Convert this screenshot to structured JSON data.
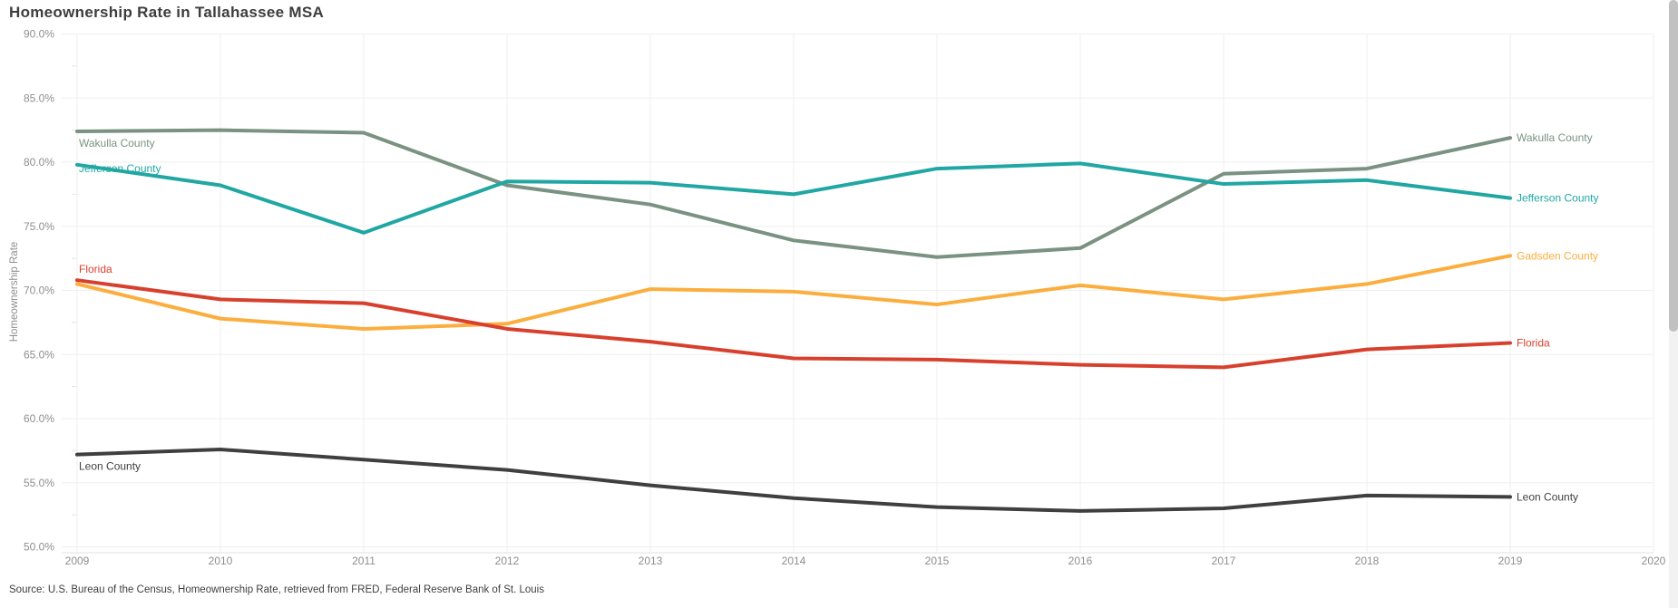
{
  "title": "Homeownership Rate in Tallahassee MSA",
  "source_note": "Source: U.S. Bureau of the Census, Homeownership Rate, retrieved from FRED, Federal Reserve Bank of St. Louis",
  "colors": {
    "background": "#FFFFFF",
    "grid": "#EFEFEF",
    "minor_tick": "#E4E4E4",
    "plot_border": "#E2E2E2",
    "axis_text": "#8E8E8E",
    "title_text": "#3D3D3D",
    "source_text": "#3E3E3E",
    "scrollbar_thumb": "#C1C1C1",
    "scrollbar_track": "#F2F2F2"
  },
  "scrollbar": {
    "thumb_top": 0,
    "thumb_height": 366
  },
  "chart_data": {
    "type": "line",
    "title": "Homeownership Rate in Tallahassee MSA",
    "xlabel": "",
    "ylabel": "Homeownership Rate",
    "x": [
      2009,
      2010,
      2011,
      2012,
      2013,
      2014,
      2015,
      2016,
      2017,
      2018,
      2019
    ],
    "x_tick_labels": [
      "2009",
      "2010",
      "2011",
      "2012",
      "2013",
      "2014",
      "2015",
      "2016",
      "2017",
      "2018",
      "2019",
      "2020"
    ],
    "y_tick_labels": [
      "50.0%",
      "55.0%",
      "60.0%",
      "65.0%",
      "70.0%",
      "75.0%",
      "80.0%",
      "85.0%",
      "90.0%"
    ],
    "xlim": [
      2009,
      2020
    ],
    "ylim": [
      50,
      90
    ],
    "grid": true,
    "legend": "inline-series-labels-left-and-right",
    "series": [
      {
        "name": "Wakulla County",
        "color": "#7A9282",
        "values": [
          82.4,
          82.5,
          82.3,
          78.2,
          76.7,
          73.9,
          72.6,
          73.3,
          79.1,
          79.5,
          81.9
        ],
        "left_label": true,
        "left_label_dy": 13
      },
      {
        "name": "Jefferson County",
        "color": "#21A7A3",
        "values": [
          79.8,
          78.2,
          74.5,
          78.5,
          78.4,
          77.5,
          79.5,
          79.9,
          78.3,
          78.6,
          77.2
        ],
        "left_label": true,
        "left_label_dy": 4
      },
      {
        "name": "Gadsden County",
        "color": "#FBAE3E",
        "values": [
          70.5,
          67.8,
          67.0,
          67.4,
          70.1,
          69.9,
          68.9,
          70.4,
          69.3,
          70.5,
          72.7
        ],
        "left_label": false,
        "left_label_dy": 0
      },
      {
        "name": "Florida",
        "color": "#D8402E",
        "values": [
          70.8,
          69.3,
          69.0,
          67.0,
          66.0,
          64.7,
          64.6,
          64.2,
          64.0,
          65.4,
          65.9
        ],
        "left_label": true,
        "left_label_dy": -12
      },
      {
        "name": "Leon County",
        "color": "#3F3F3F",
        "values": [
          57.2,
          57.6,
          56.8,
          56.0,
          54.8,
          53.8,
          53.1,
          52.8,
          53.0,
          54.0,
          53.9
        ],
        "left_label": true,
        "left_label_dy": 13
      }
    ]
  }
}
